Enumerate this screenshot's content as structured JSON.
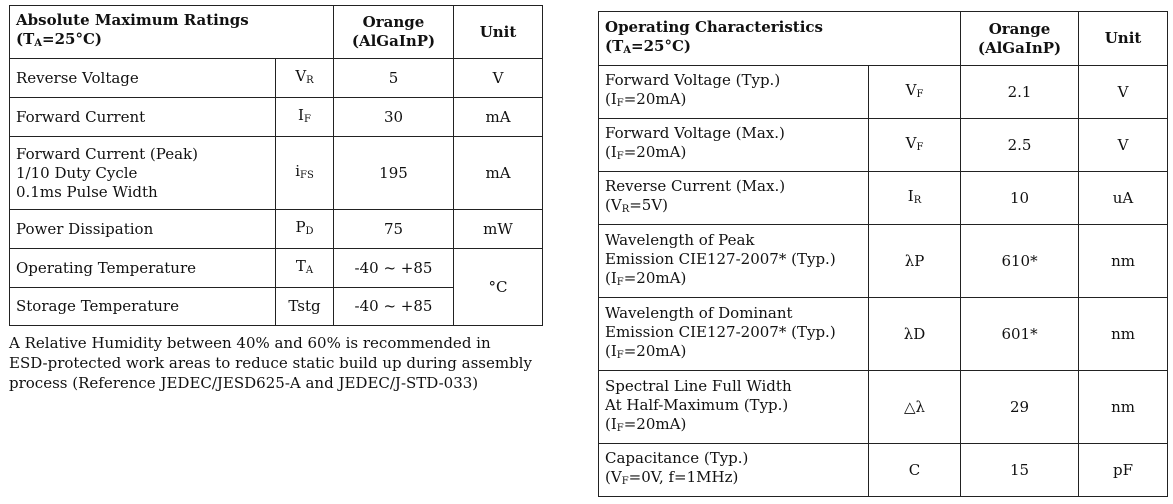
{
  "abs": {
    "title": "Absolute Maximum Ratings",
    "cond_prefix": "(T",
    "cond_sub": "A",
    "cond_suffix": "=25°C)",
    "col_orange_1": "Orange",
    "col_orange_2": "(AlGaInP)",
    "col_unit": "Unit",
    "rows": [
      {
        "param": [
          "Reverse Voltage"
        ],
        "sym": "V",
        "sub": "R",
        "value": "5",
        "unit": "V"
      },
      {
        "param": [
          "Forward Current"
        ],
        "sym": "I",
        "sub": "F",
        "value": "30",
        "unit": "mA"
      },
      {
        "param": [
          "Forward Current (Peak)",
          "1/10 Duty Cycle",
          "0.1ms Pulse Width"
        ],
        "sym": "i",
        "sub": "FS",
        "value": "195",
        "unit": "mA"
      },
      {
        "param": [
          "Power Dissipation"
        ],
        "sym": "P",
        "sub": "D",
        "value": "75",
        "unit": "mW"
      },
      {
        "param": [
          "Operating Temperature"
        ],
        "sym": "T",
        "sub": "A",
        "value": "-40 ~ +85",
        "unit": "°C"
      },
      {
        "param": [
          "Storage Temperature"
        ],
        "sym": "Tstg",
        "sub": "",
        "value": "-40 ~ +85"
      }
    ]
  },
  "note": {
    "line1": "A Relative Humidity between 40% and 60% is recommended in",
    "line2": "ESD-protected work areas to reduce static build up during assembly",
    "line3": "process (Reference JEDEC/JESD625-A and JEDEC/J-STD-033)"
  },
  "op": {
    "title": "Operating Characteristics",
    "cond_prefix": "(T",
    "cond_sub": "A",
    "cond_suffix": "=25°C)",
    "col_orange_1": "Orange",
    "col_orange_2": "(AlGaInP)",
    "col_unit": "Unit",
    "rows": [
      {
        "param": [
          "Forward Voltage (Typ.)"
        ],
        "cond": {
          "pre": "(I",
          "sub": "F",
          "post": "=20mA)"
        },
        "sym": "V",
        "sub": "F",
        "value": "2.1",
        "unit": "V"
      },
      {
        "param": [
          "Forward Voltage (Max.)"
        ],
        "cond": {
          "pre": "(I",
          "sub": "F",
          "post": "=20mA)"
        },
        "sym": "V",
        "sub": "F",
        "value": "2.5",
        "unit": "V"
      },
      {
        "param": [
          "Reverse Current (Max.)"
        ],
        "cond": {
          "pre": "(V",
          "sub": "R",
          "post": "=5V)"
        },
        "sym": "I",
        "sub": "R",
        "value": "10",
        "unit": "uA"
      },
      {
        "param": [
          "Wavelength of Peak",
          "Emission  CIE127-2007* (Typ.)"
        ],
        "cond": {
          "pre": "(I",
          "sub": "F",
          "post": "=20mA)"
        },
        "sym": "λP",
        "sub": "",
        "value": "610*",
        "unit": "nm"
      },
      {
        "param": [
          "Wavelength of Dominant",
          "Emission  CIE127-2007* (Typ.)"
        ],
        "cond": {
          "pre": "(I",
          "sub": "F",
          "post": "=20mA)"
        },
        "sym": "λD",
        "sub": "",
        "value": "601*",
        "unit": "nm"
      },
      {
        "param": [
          "Spectral Line Full Width",
          "At Half-Maximum (Typ.)"
        ],
        "cond": {
          "pre": "(I",
          "sub": "F",
          "post": "=20mA)"
        },
        "sym": "△λ",
        "sub": "",
        "value": "29",
        "unit": "nm"
      },
      {
        "param": [
          "Capacitance (Typ.)"
        ],
        "cond": {
          "pre": "(V",
          "sub": "F",
          "post": "=0V, f=1MHz)"
        },
        "sym": "C",
        "sub": "",
        "value": "15",
        "unit": "pF"
      }
    ]
  }
}
